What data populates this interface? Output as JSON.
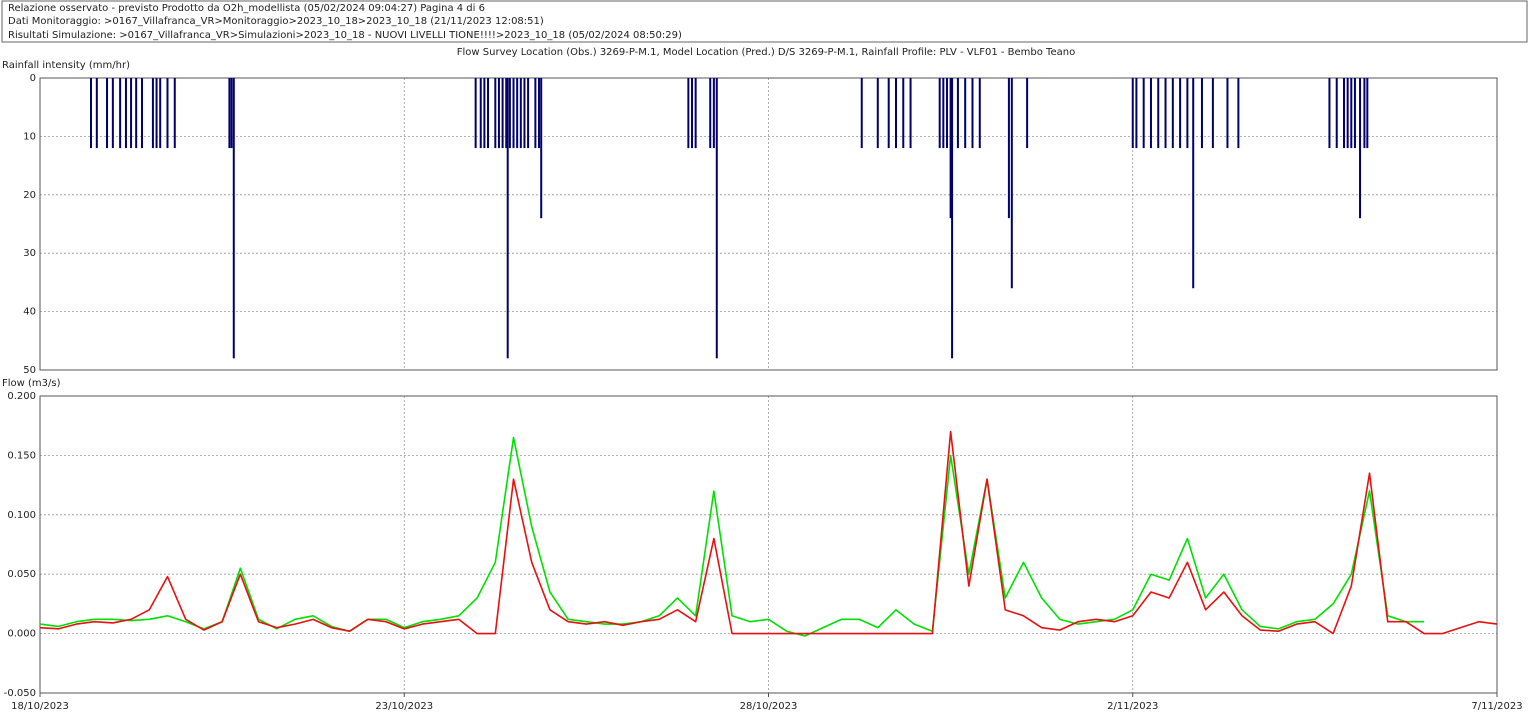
{
  "header": {
    "lines": [
      "Relazione osservato - previsto Prodotto da O2h_modellista (05/02/2024 09:04:27) Pagina 4 di 6",
      "Dati Monitoraggio: >0167_Villafranca_VR>Monitoraggio>2023_10_18>2023_10_18 (21/11/2023 12:08:51)",
      "Risultati Simulazione: >0167_Villafranca_VR>Simulazioni>2023_10_18 - NUOVI LIVELLI TIONE!!!!>2023_10_18 (05/02/2024 08:50:29)"
    ]
  },
  "chart_data": [
    {
      "type": "bar",
      "title": "Flow Survey Location (Obs.) 3269-P-M.1, Model Location (Pred.) D/S 3269-P-M.1, Rainfall Profile: PLV - VLF01 - Bembo Teano",
      "y_label": "Rainfall intensity (mm/hr)",
      "color": "#00006e",
      "invert_y": true,
      "grid": true,
      "xlim": [
        0,
        20
      ],
      "ylim": [
        0,
        50
      ],
      "yticks": [
        0,
        10,
        20,
        30,
        40,
        50
      ],
      "x": [
        0.7,
        0.78,
        0.92,
        1.0,
        1.1,
        1.18,
        1.25,
        1.32,
        1.4,
        1.55,
        1.6,
        1.65,
        1.75,
        1.85,
        2.6,
        2.63,
        2.66,
        5.98,
        6.05,
        6.1,
        6.15,
        6.25,
        6.3,
        6.35,
        6.4,
        6.42,
        6.45,
        6.5,
        6.55,
        6.6,
        6.65,
        6.7,
        6.8,
        6.85,
        6.88,
        8.9,
        8.95,
        9.0,
        9.2,
        9.25,
        9.29,
        11.28,
        11.5,
        11.65,
        11.75,
        11.85,
        11.95,
        12.35,
        12.4,
        12.45,
        12.5,
        12.52,
        12.6,
        12.7,
        12.8,
        12.9,
        13.3,
        13.34,
        13.55,
        15.0,
        15.05,
        15.15,
        15.25,
        15.35,
        15.45,
        15.55,
        15.65,
        15.75,
        15.83,
        15.95,
        16.1,
        16.3,
        16.45,
        17.7,
        17.8,
        17.9,
        17.95,
        18.0,
        18.05,
        18.12,
        18.18,
        18.22
      ],
      "values": [
        12,
        12,
        12,
        12,
        12,
        12,
        12,
        12,
        12,
        12,
        12,
        12,
        12,
        12,
        12,
        12,
        48,
        12,
        12,
        12,
        12,
        12,
        12,
        12,
        12,
        48,
        12,
        12,
        12,
        12,
        12,
        12,
        12,
        12,
        24,
        12,
        12,
        12,
        12,
        12,
        48,
        12,
        12,
        12,
        12,
        12,
        12,
        12,
        12,
        12,
        24,
        48,
        12,
        12,
        12,
        12,
        24,
        36,
        12,
        12,
        12,
        12,
        12,
        12,
        12,
        12,
        12,
        12,
        36,
        12,
        12,
        12,
        12,
        12,
        12,
        12,
        12,
        12,
        12,
        24,
        12,
        12
      ]
    },
    {
      "type": "line",
      "y_label": "Flow (m3/s)",
      "grid": true,
      "xlim": [
        0,
        20
      ],
      "xticks": [
        {
          "value": 0,
          "label": "18/10/2023"
        },
        {
          "value": 5,
          "label": "23/10/2023"
        },
        {
          "value": 10,
          "label": "28/10/2023"
        },
        {
          "value": 15,
          "label": "2/11/2023"
        },
        {
          "value": 20,
          "label": "7/11/2023"
        }
      ],
      "ylim": [
        -0.05,
        0.2
      ],
      "yticks": [
        {
          "value": -0.05,
          "label": "-0.050"
        },
        {
          "value": 0,
          "label": "0.000"
        },
        {
          "value": 0.05,
          "label": "0.050"
        },
        {
          "value": 0.1,
          "label": "0.100"
        },
        {
          "value": 0.15,
          "label": "0.150"
        },
        {
          "value": 0.2,
          "label": "0.200"
        }
      ],
      "x": [
        0,
        0.25,
        0.5,
        0.75,
        1,
        1.25,
        1.5,
        1.75,
        2,
        2.25,
        2.5,
        2.75,
        3,
        3.25,
        3.5,
        3.75,
        4,
        4.25,
        4.5,
        4.75,
        5,
        5.25,
        5.5,
        5.75,
        6,
        6.25,
        6.5,
        6.75,
        7,
        7.25,
        7.5,
        7.75,
        8,
        8.25,
        8.5,
        8.75,
        9,
        9.25,
        9.5,
        9.75,
        10,
        10.25,
        10.5,
        10.75,
        11,
        11.25,
        11.5,
        11.75,
        12,
        12.25,
        12.5,
        12.75,
        13,
        13.25,
        13.5,
        13.75,
        14,
        14.25,
        14.5,
        14.75,
        15,
        15.25,
        15.5,
        15.75,
        16,
        16.25,
        16.5,
        16.75,
        17,
        17.25,
        17.5,
        17.75,
        18,
        18.25,
        18.5,
        18.75,
        19,
        19.25,
        19.5,
        19.75,
        20
      ],
      "series": [
        {
          "color": "#00e000",
          "values": [
            0.008,
            0.006,
            0.01,
            0.012,
            0.012,
            0.011,
            0.012,
            0.015,
            0.01,
            0.004,
            0.01,
            0.055,
            0.012,
            0.004,
            0.012,
            0.015,
            0.006,
            0.002,
            0.012,
            0.012,
            0.005,
            0.01,
            0.012,
            0.015,
            0.03,
            0.06,
            0.165,
            0.09,
            0.035,
            0.012,
            0.01,
            0.008,
            0.008,
            0.01,
            0.015,
            0.03,
            0.015,
            0.12,
            0.015,
            0.01,
            0.012,
            0.002,
            -0.002,
            0.005,
            0.012,
            0.012,
            0.005,
            0.02,
            0.008,
            0.002,
            0.15,
            0.05,
            0.13,
            0.03,
            0.06,
            0.03,
            0.012,
            0.008,
            0.01,
            0.012,
            0.02,
            0.05,
            0.045,
            0.08,
            0.03,
            0.05,
            0.02,
            0.006,
            0.004,
            0.01,
            0.012,
            0.025,
            0.05,
            0.12,
            0.015,
            0.01,
            0.01,
            null,
            null,
            null,
            null
          ]
        },
        {
          "color": "#e81010",
          "values": [
            0.005,
            0.004,
            0.008,
            0.01,
            0.009,
            0.012,
            0.02,
            0.048,
            0.012,
            0.003,
            0.01,
            0.05,
            0.01,
            0.005,
            0.008,
            0.012,
            0.005,
            0.002,
            0.012,
            0.01,
            0.004,
            0.008,
            0.01,
            0.012,
            0,
            0,
            0.13,
            0.06,
            0.02,
            0.01,
            0.008,
            0.01,
            0.007,
            0.01,
            0.012,
            0.02,
            0.01,
            0.08,
            0,
            0,
            0,
            0,
            0,
            0,
            0,
            0,
            0,
            0,
            0,
            0,
            0.17,
            0.04,
            0.13,
            0.02,
            0.015,
            0.005,
            0.003,
            0.01,
            0.012,
            0.01,
            0.015,
            0.035,
            0.03,
            0.06,
            0.02,
            0.035,
            0.015,
            0.003,
            0.002,
            0.008,
            0.01,
            0,
            0.04,
            0.135,
            0.01,
            0.01,
            0,
            0,
            0.005,
            0.01,
            0.008
          ]
        }
      ]
    }
  ]
}
